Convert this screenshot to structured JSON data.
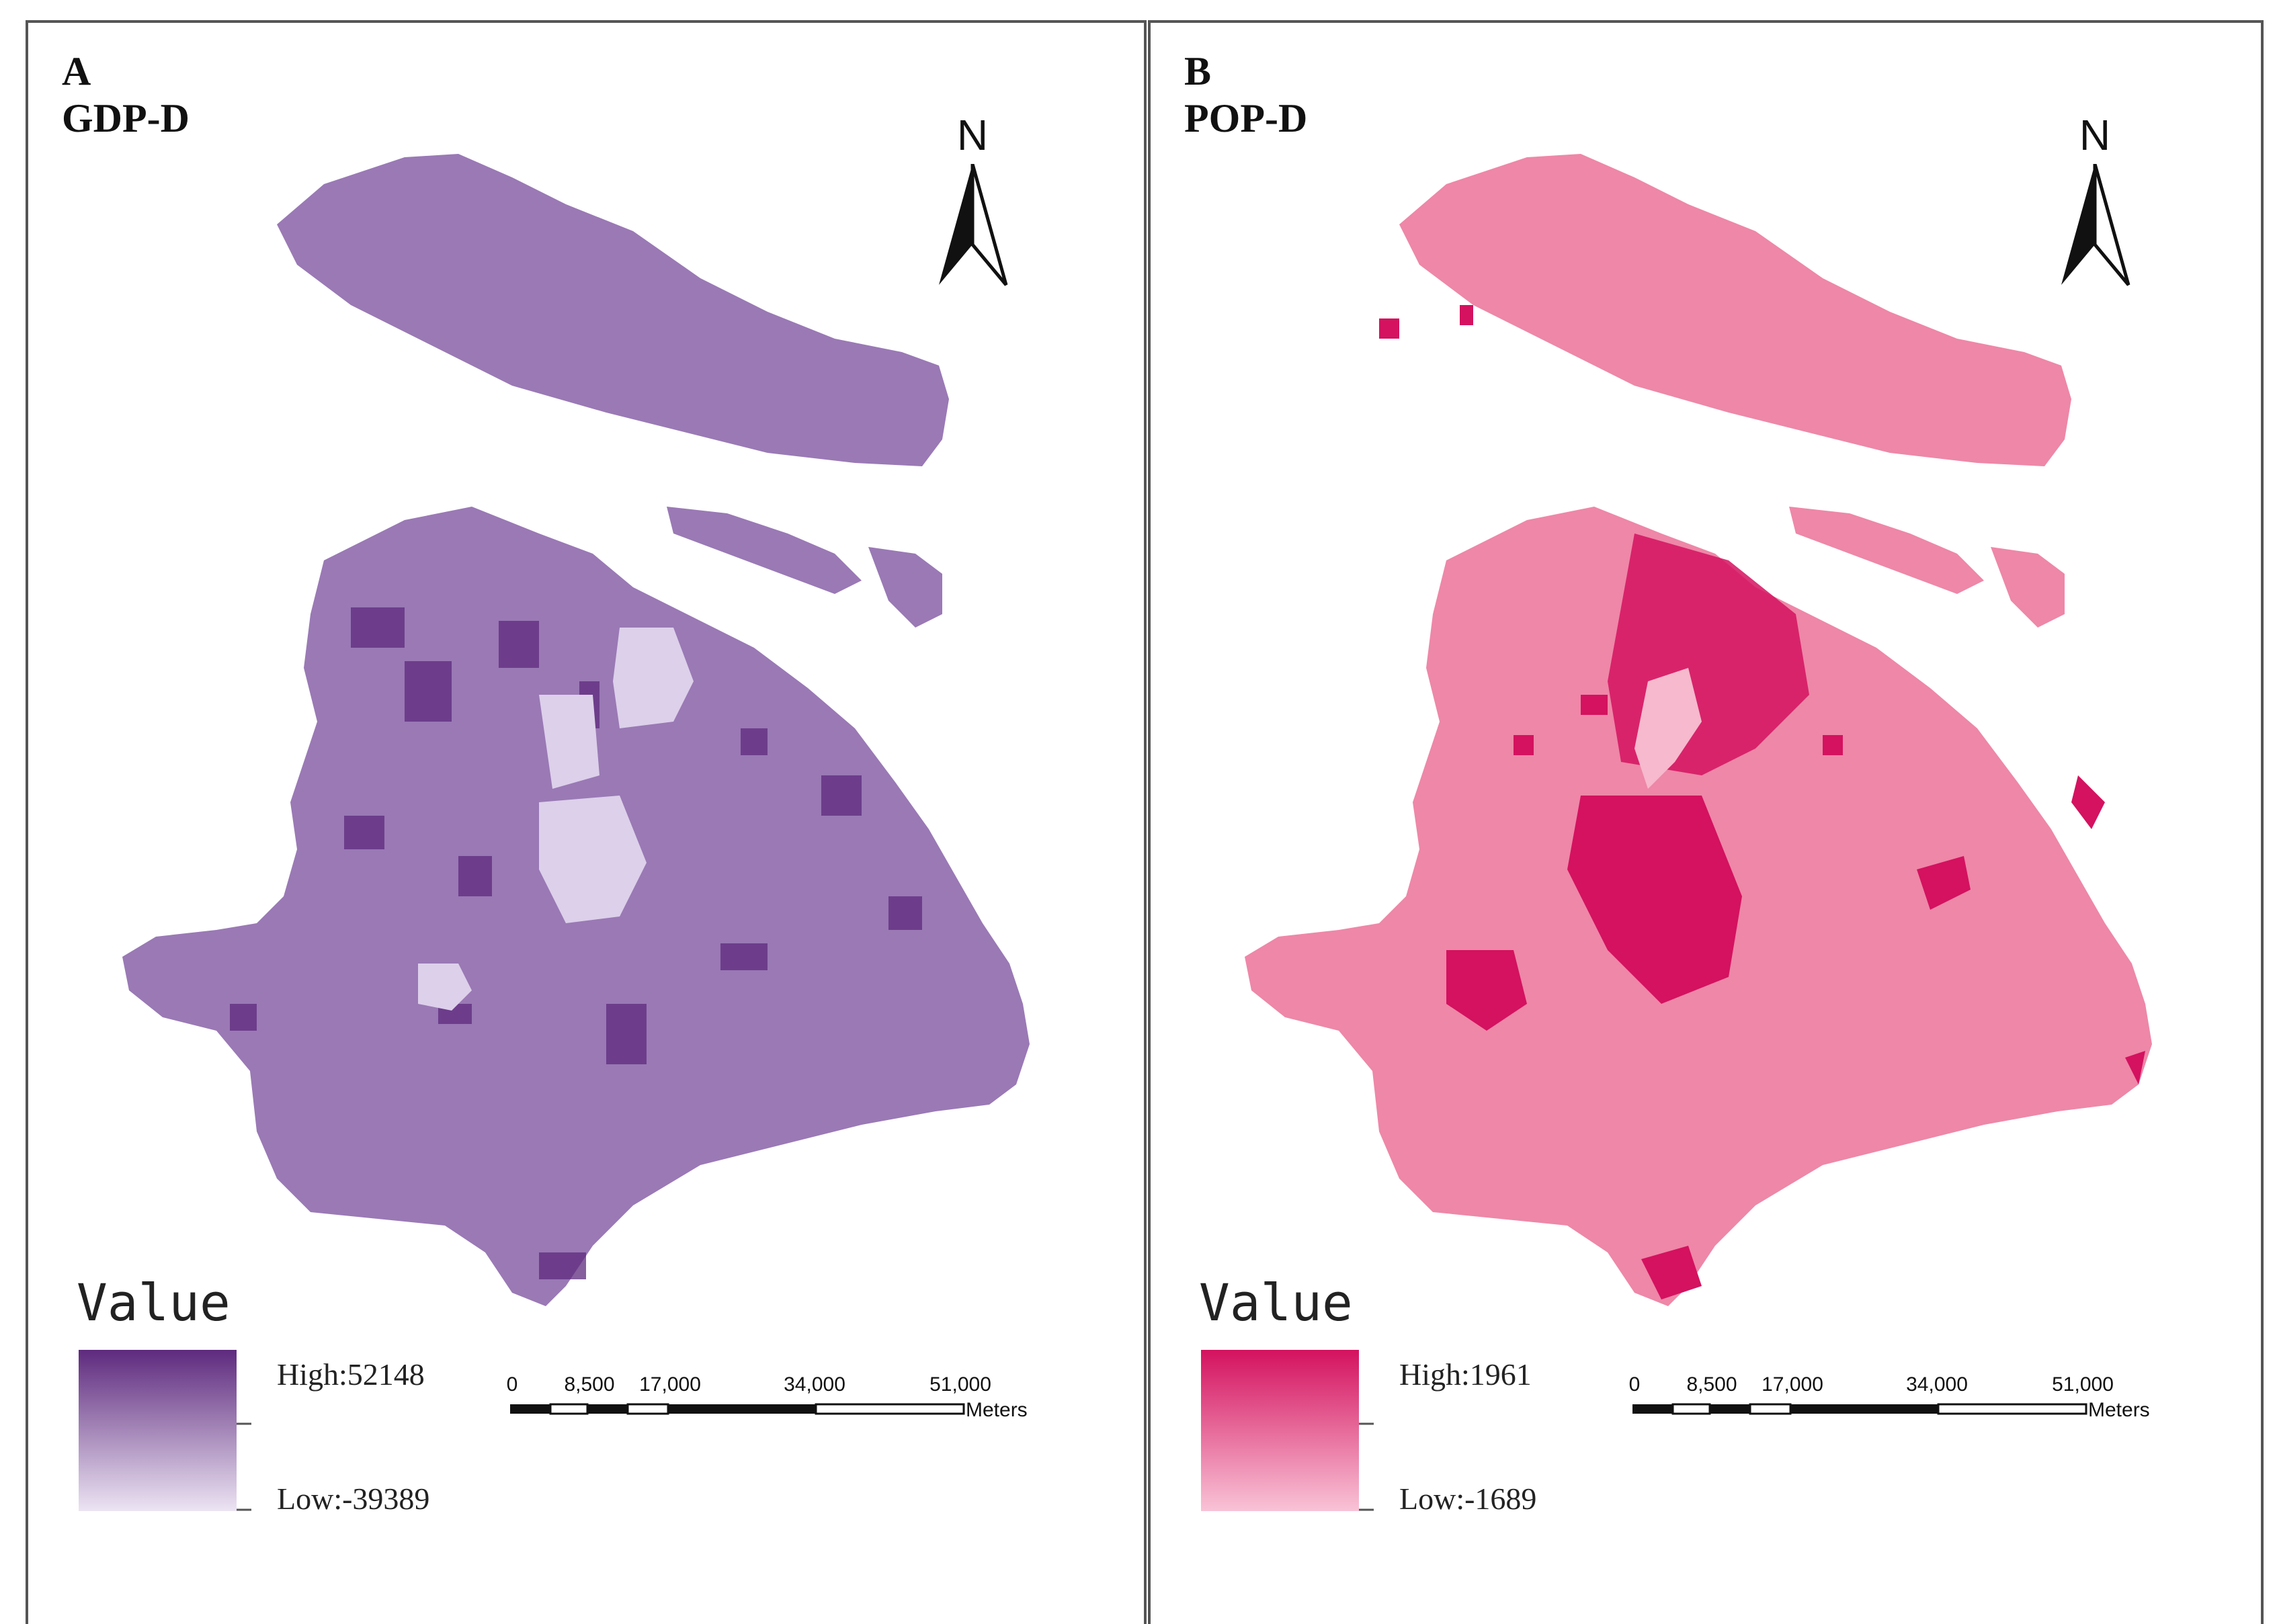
{
  "panels": [
    {
      "letter": "A",
      "title": "GDP-D",
      "north_label": "N",
      "legend": {
        "title": "Value",
        "high_label": "High:52148",
        "low_label": "Low:-39389",
        "high_color": "#5e2a7e",
        "low_color": "#ece4f3"
      },
      "base_color": "#9a79b5",
      "accent_dark": "#5e2a7e",
      "accent_light": "#ddd0ea",
      "scale": {
        "ticks": [
          "0",
          "8,500",
          "17,000",
          "34,000",
          "51,000"
        ],
        "units": "Meters"
      }
    },
    {
      "letter": "B",
      "title": "POP-D",
      "north_label": "N",
      "legend": {
        "title": "Value",
        "high_label": "High:1961",
        "low_label": "Low:-1689",
        "high_color": "#d4125f",
        "low_color": "#f9c3d6"
      },
      "base_color": "#ee87a8",
      "accent_dark": "#d4125f",
      "accent_light": "#f6b9cd",
      "scale": {
        "ticks": [
          "0",
          "8,500",
          "17,000",
          "34,000",
          "51,000"
        ],
        "units": "Meters"
      }
    }
  ]
}
